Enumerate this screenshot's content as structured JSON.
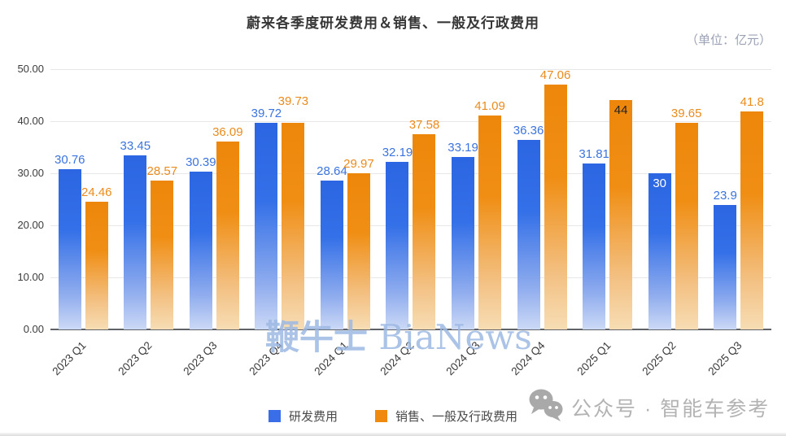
{
  "title": "蔚来各季度研发费用＆销售、一般及行政费用",
  "unit_label": "（单位：亿元）",
  "chart_data": {
    "type": "bar",
    "categories": [
      "2023 Q1",
      "2023 Q2",
      "2023 Q3",
      "2023 Q4",
      "2024 Q1",
      "2024 Q2",
      "2024 Q3",
      "2024 Q4",
      "2025 Q1",
      "2025 Q2",
      "2025 Q3"
    ],
    "series": [
      {
        "name": "研发费用",
        "color": "#3a6ee8",
        "label_color": "#3b74de",
        "values": [
          30.76,
          33.45,
          30.39,
          39.72,
          28.64,
          32.19,
          33.19,
          36.36,
          31.81,
          30,
          23.9
        ]
      },
      {
        "name": "销售、一般及行政费用",
        "color": "#f08a0f",
        "label_color": "#ea8b1c",
        "values": [
          24.46,
          28.57,
          36.09,
          39.73,
          29.97,
          37.58,
          41.09,
          47.06,
          44,
          39.65,
          41.8
        ]
      }
    ],
    "label_overrides": [
      {
        "series": 1,
        "index": 3,
        "dy": 15
      },
      {
        "series": 1,
        "index": 8,
        "inside": true,
        "color": "#222222"
      },
      {
        "series": 0,
        "index": 9,
        "inside": true,
        "color": "#ffffff"
      }
    ],
    "ylim": [
      0,
      50
    ],
    "ytick_step": 10,
    "ytick_labels": [
      "0.00",
      "10.00",
      "20.00",
      "30.00",
      "40.00",
      "50.00"
    ],
    "grid": true,
    "legend_position": "bottom"
  },
  "legend": {
    "items": [
      {
        "label": "研发费用",
        "color": "#3a6ee8"
      },
      {
        "label": "销售、一般及行政费用",
        "color": "#f08a0f"
      }
    ]
  },
  "watermarks": {
    "center": {
      "cn": "鞭牛士",
      "en": " BiaNews"
    },
    "bottom_right": {
      "icon": "wechat-icon",
      "text": "公众号 · 智能车参考"
    }
  }
}
